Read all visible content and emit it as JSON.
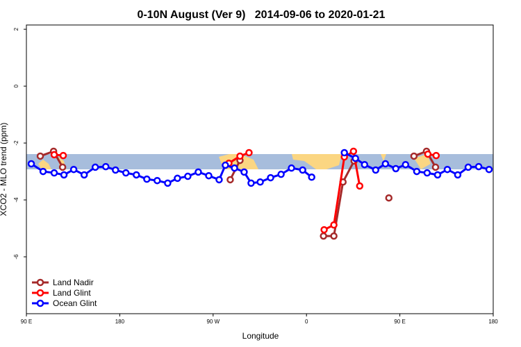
{
  "chart_data": {
    "type": "line",
    "title": "0-10N August (Ver 9)   2014-09-06 to 2020-01-21",
    "x_label": "Longitude",
    "y_label": "XCO2 - MLO trend (ppm)",
    "xlim": [
      90,
      540
    ],
    "ylim": [
      -8,
      2.15
    ],
    "xticks": [
      {
        "value": 90,
        "label": "90 E"
      },
      {
        "value": 180,
        "label": "180"
      },
      {
        "value": 270,
        "label": "90 W"
      },
      {
        "value": 360,
        "label": "0"
      },
      {
        "value": 450,
        "label": "90 E"
      },
      {
        "value": 540,
        "label": "180"
      }
    ],
    "yticks": [
      2,
      0,
      -2,
      -4,
      -6
    ],
    "legend": "bottom-left",
    "series": [
      {
        "name": "Land Nadir",
        "color": "#a52a2a",
        "x": [
          103.4,
          116.2,
          124.9,
          null,
          286.5,
          295.9,
          null,
          376.4,
          386.4,
          395.2,
          405.9,
          null,
          439.4,
          null,
          463.6,
          475.7,
          484.4
        ],
        "values": [
          -2.46,
          -2.29,
          -2.85,
          null,
          -3.29,
          -2.61,
          null,
          -5.27,
          -5.27,
          -3.37,
          -2.63,
          null,
          -3.93,
          null,
          -2.46,
          -2.29,
          -2.85
        ]
      },
      {
        "name": "Land Glint",
        "color": "#ff0000",
        "x": [
          116.8,
          125.5,
          null,
          285.2,
          295.9,
          304.6,
          null,
          377,
          386.4,
          396.5,
          405.3,
          411.3,
          null,
          477,
          485
        ],
        "values": [
          -2.41,
          -2.44,
          null,
          -2.71,
          -2.46,
          -2.34,
          null,
          -5.05,
          -4.88,
          -2.49,
          -2.29,
          -3.51,
          null,
          -2.39,
          -2.44
        ]
      },
      {
        "name": "Ocean Glint",
        "color": "#0000ff",
        "x": [
          94.7,
          106.1,
          116.8,
          126.2,
          135.6,
          145.7,
          156.4,
          166.5,
          175.9,
          185.9,
          196,
          206.1,
          216.1,
          226.2,
          235.6,
          245.6,
          255.7,
          265.8,
          275.8,
          281.8,
          290.6,
          299.9,
          306.6,
          315.4,
          325.4,
          335.5,
          345.5,
          356.3,
          365,
          null,
          396.5,
          407.2,
          416,
          426.7,
          436.1,
          446.1,
          455.5,
          466.3,
          476.3,
          486.4,
          495.8,
          505.8,
          515.9,
          526,
          536
        ],
        "values": [
          -2.73,
          -3.0,
          -3.05,
          -3.12,
          -2.93,
          -3.12,
          -2.85,
          -2.83,
          -2.95,
          -3.05,
          -3.12,
          -3.27,
          -3.32,
          -3.41,
          -3.24,
          -3.17,
          -3.02,
          -3.15,
          -3.29,
          -2.78,
          -2.88,
          -3.02,
          -3.41,
          -3.37,
          -3.22,
          -3.1,
          -2.88,
          -2.95,
          -3.2,
          null,
          -2.34,
          -2.54,
          -2.76,
          -2.95,
          -2.73,
          -2.9,
          -2.76,
          -3.0,
          -3.05,
          -3.12,
          -2.93,
          -3.12,
          -2.85,
          -2.83,
          -2.93
        ]
      }
    ]
  }
}
